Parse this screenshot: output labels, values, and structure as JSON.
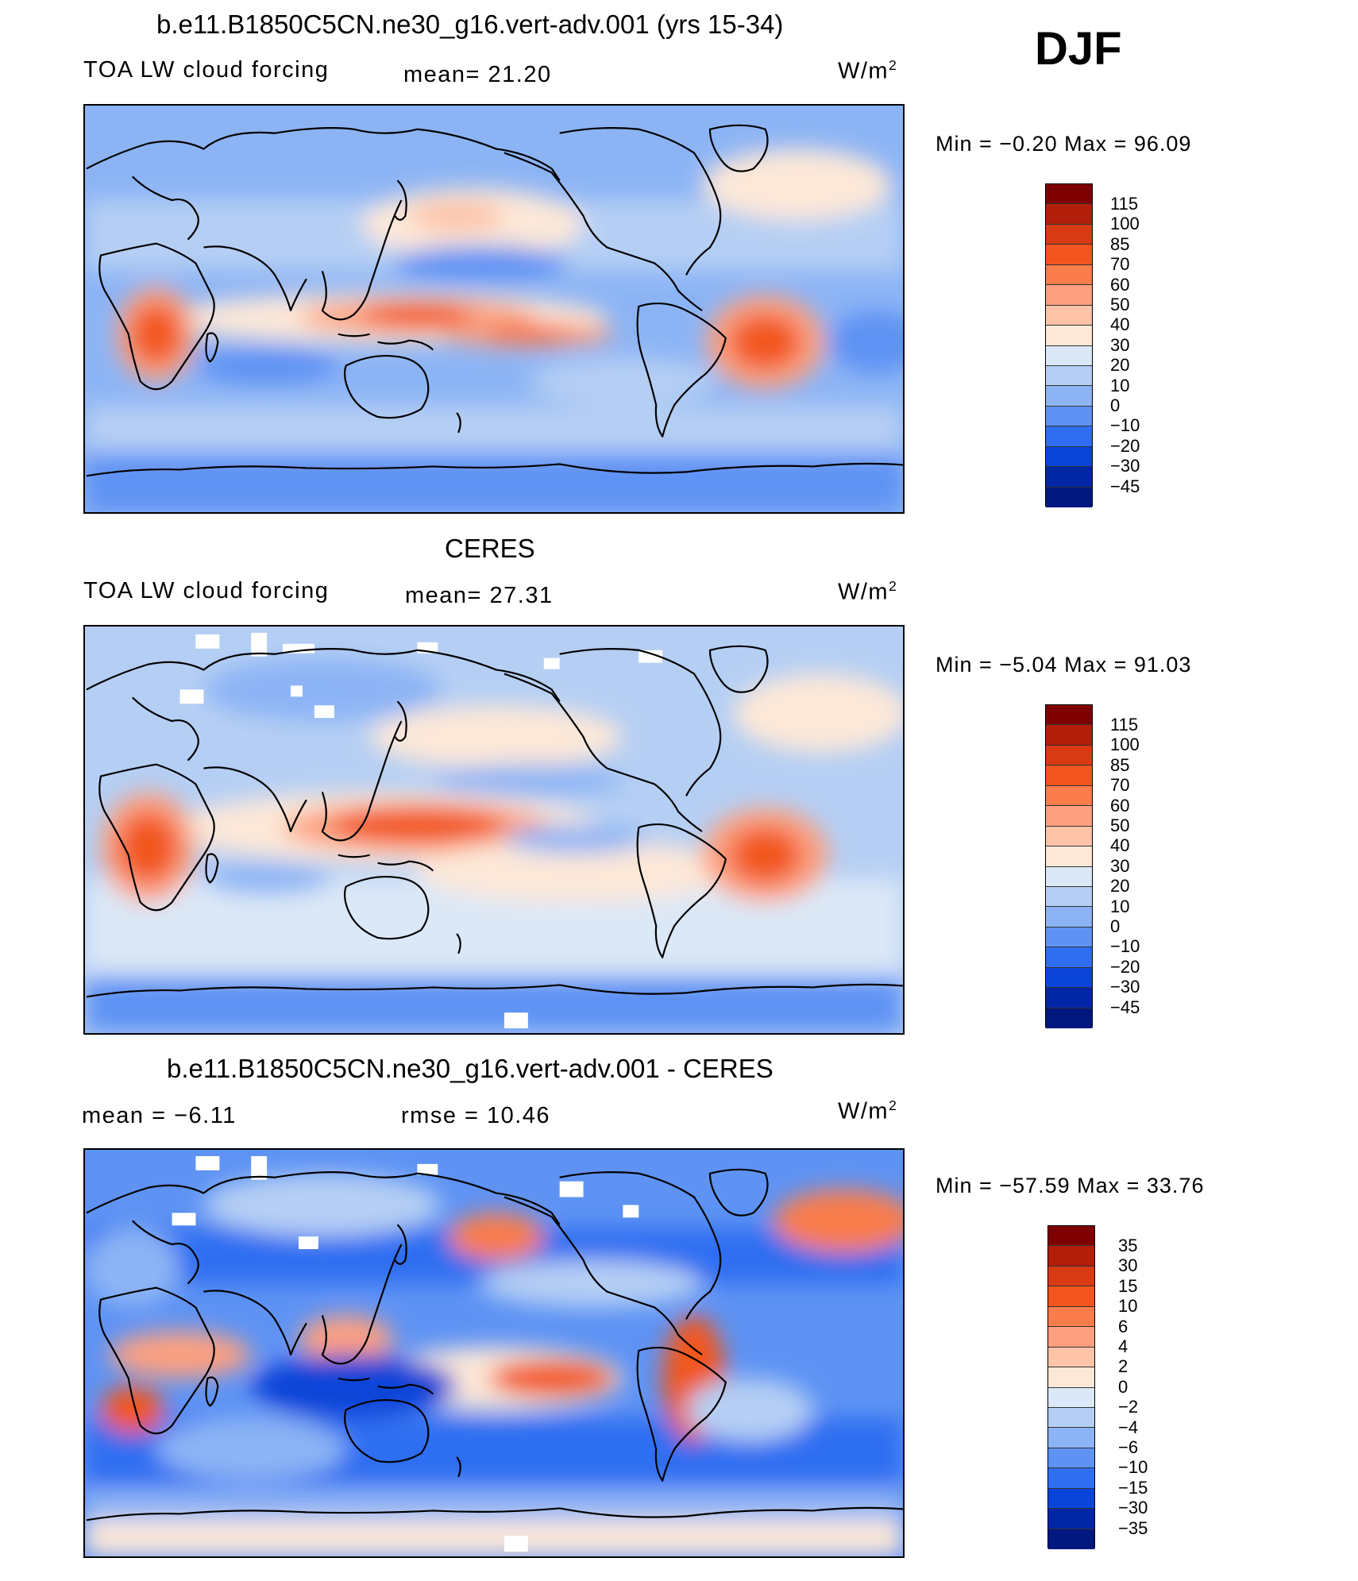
{
  "season": "DJF",
  "panels": [
    {
      "title": "b.e11.B1850C5CN.ne30_g16.vert-adv.001 (yrs 15-34)",
      "left_text": "TOA LW cloud forcing",
      "mid_text": "mean=  21.20",
      "units": "W/m",
      "units_sup": "2",
      "minmax": "Min  =    −0.20  Max  =    96.09",
      "levels": [
        "115",
        "100",
        "85",
        "70",
        "60",
        "50",
        "40",
        "30",
        "20",
        "10",
        "0",
        "−10",
        "−20",
        "−30",
        "−45"
      ],
      "colors": [
        "#7f0000",
        "#b21e0a",
        "#d83a14",
        "#f2561e",
        "#fa7d4b",
        "#fca080",
        "#fdc4a8",
        "#fde8d8",
        "#dbe8f7",
        "#b5cff4",
        "#8cb4f5",
        "#5e93f4",
        "#2f6ef1",
        "#0a44d8",
        "#0026a6",
        "#001780"
      ]
    },
    {
      "title": "CERES",
      "left_text": "TOA LW cloud forcing",
      "mid_text": "mean=  27.31",
      "units": "W/m",
      "units_sup": "2",
      "minmax": "Min  =    −5.04  Max  =    91.03",
      "levels": [
        "115",
        "100",
        "85",
        "70",
        "60",
        "50",
        "40",
        "30",
        "20",
        "10",
        "0",
        "−10",
        "−20",
        "−30",
        "−45"
      ],
      "colors": [
        "#7f0000",
        "#b21e0a",
        "#d83a14",
        "#f2561e",
        "#fa7d4b",
        "#fca080",
        "#fdc4a8",
        "#fde8d8",
        "#dbe8f7",
        "#b5cff4",
        "#8cb4f5",
        "#5e93f4",
        "#2f6ef1",
        "#0a44d8",
        "#0026a6",
        "#001780"
      ]
    },
    {
      "title": "b.e11.B1850C5CN.ne30_g16.vert-adv.001 - CERES",
      "left_text": "mean  =    −6.11",
      "mid_text": "rmse  =    10.46",
      "units": "W/m",
      "units_sup": "2",
      "minmax": "Min  =  −57.59  Max  =    33.76",
      "levels": [
        "35",
        "30",
        "15",
        "10",
        "6",
        "4",
        "2",
        "0",
        "−2",
        "−4",
        "−6",
        "−10",
        "−15",
        "−30",
        "−35"
      ],
      "colors": [
        "#7f0000",
        "#b21e0a",
        "#d83a14",
        "#f2561e",
        "#fa7d4b",
        "#fca080",
        "#fdc4a8",
        "#fde8d8",
        "#dbe8f7",
        "#b5cff4",
        "#8cb4f5",
        "#5e93f4",
        "#2f6ef1",
        "#0a44d8",
        "#0026a6",
        "#001780"
      ]
    }
  ]
}
